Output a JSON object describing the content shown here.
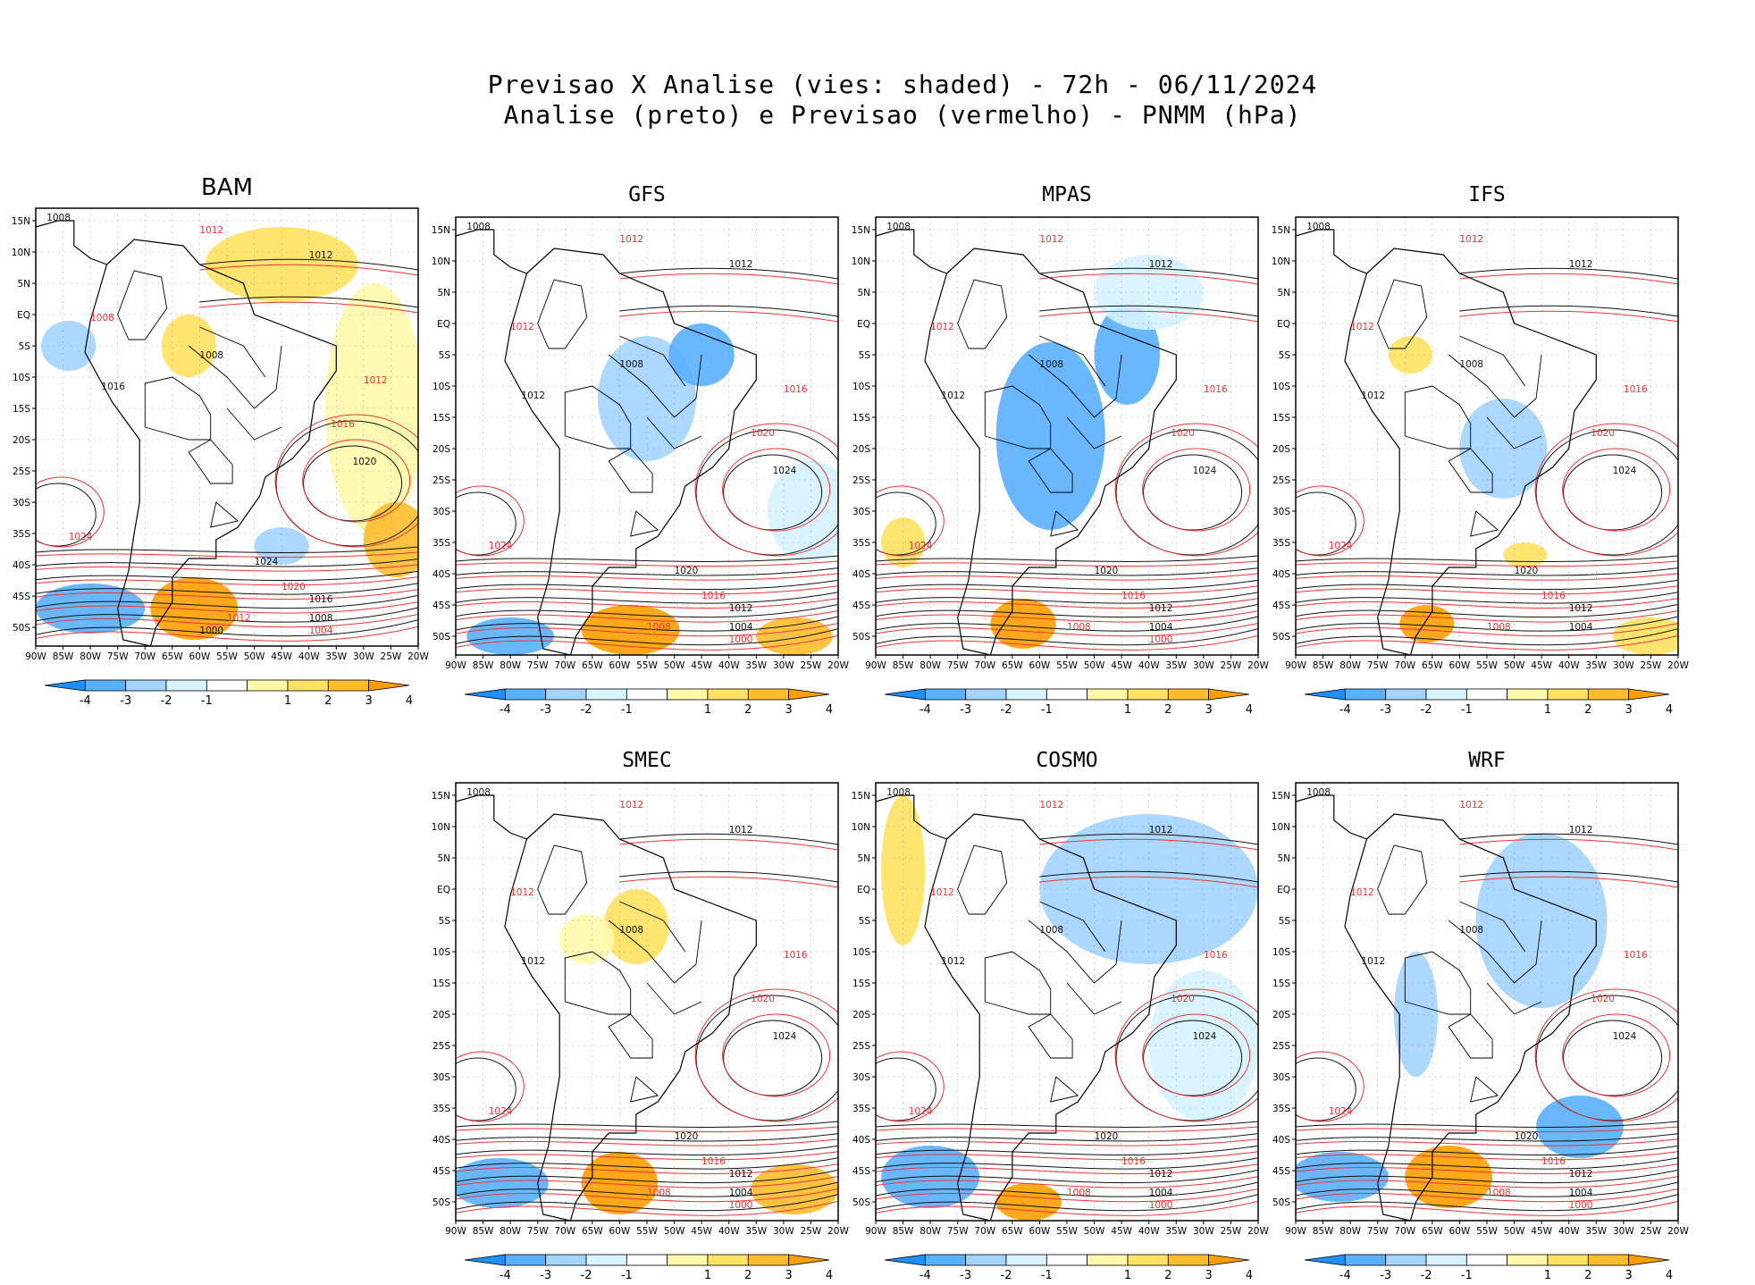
{
  "title_line1": "Previsao X Analise (vies: shaded) - 72h - 06/11/2024",
  "title_line2": "Analise (preto) e Previsao (vermelho) - PNMM (hPa)",
  "chart_data": {
    "type": "heatmap",
    "variable": "PNMM (hPa)",
    "bias_shading": "Previsao X Analise (vies: shaded)",
    "lead_time": "72h",
    "date": "06/11/2024",
    "analysis_color_label": "preto",
    "forecast_color_label": "vermelho",
    "x_ticks": [
      "90W",
      "85W",
      "80W",
      "75W",
      "70W",
      "65W",
      "60W",
      "55W",
      "50W",
      "45W",
      "40W",
      "35W",
      "30W",
      "25W",
      "20W"
    ],
    "y_ticks": [
      "15N",
      "10N",
      "5N",
      "EQ",
      "5S",
      "10S",
      "15S",
      "20S",
      "25S",
      "30S",
      "35S",
      "40S",
      "45S",
      "50S"
    ],
    "x_range": [
      -90,
      -20
    ],
    "y_range": [
      -53,
      17
    ],
    "colorbar": {
      "labels": [
        "-4",
        "-3",
        "-2",
        "-1",
        "1",
        "2",
        "3",
        "4"
      ],
      "colors": [
        "#1e90ff",
        "#59b0ff",
        "#a3d3ff",
        "#d6f3ff",
        "#ffffff",
        "#fff8ab",
        "#ffe261",
        "#ffbd2e",
        "#ff9e00"
      ]
    },
    "panels": [
      {
        "model": "BAM",
        "isobar_labels": [
          "1008",
          "1012",
          "1012",
          "1008",
          "1008",
          "1012",
          "1016",
          "1016",
          "1020",
          "1024",
          "1024",
          "1020",
          "1016",
          "1012",
          "1008",
          "1004",
          "1000"
        ],
        "bias_regions": [
          {
            "lon": -45,
            "lat": 8,
            "rlon": 14,
            "rlat": 6,
            "value": 2
          },
          {
            "lon": -28,
            "lat": -15,
            "rlon": 9,
            "rlat": 20,
            "value": 1
          },
          {
            "lon": -24,
            "lat": -36,
            "rlon": 6,
            "rlat": 6,
            "value": 3
          },
          {
            "lon": -61,
            "lat": -47,
            "rlon": 8,
            "rlat": 5,
            "value": 4
          },
          {
            "lon": -62,
            "lat": -5,
            "rlon": 5,
            "rlat": 5,
            "value": 2
          },
          {
            "lon": -80,
            "lat": -47,
            "rlon": 10,
            "rlat": 4,
            "value": -3
          },
          {
            "lon": -45,
            "lat": -37,
            "rlon": 5,
            "rlat": 3,
            "value": -2
          },
          {
            "lon": -84,
            "lat": -5,
            "rlon": 5,
            "rlat": 4,
            "value": -2
          }
        ]
      },
      {
        "model": "GFS",
        "isobar_labels": [
          "1008",
          "1012",
          "1012",
          "1012",
          "1008",
          "1016",
          "1012",
          "1020",
          "1024",
          "1024",
          "1020",
          "1016",
          "1012",
          "1008",
          "1004",
          "1000"
        ],
        "bias_regions": [
          {
            "lon": -55,
            "lat": -12,
            "rlon": 9,
            "rlat": 10,
            "value": -2
          },
          {
            "lon": -45,
            "lat": -5,
            "rlon": 6,
            "rlat": 5,
            "value": -3
          },
          {
            "lon": -58,
            "lat": -49,
            "rlon": 9,
            "rlat": 4,
            "value": 4
          },
          {
            "lon": -28,
            "lat": -50,
            "rlon": 7,
            "rlat": 3,
            "value": 3
          },
          {
            "lon": -25,
            "lat": -30,
            "rlon": 8,
            "rlat": 8,
            "value": -1
          },
          {
            "lon": -80,
            "lat": -50,
            "rlon": 8,
            "rlat": 3,
            "value": -3
          }
        ]
      },
      {
        "model": "MPAS",
        "isobar_labels": [
          "1008",
          "1012",
          "1012",
          "1012",
          "1008",
          "1016",
          "1012",
          "1020",
          "1024",
          "1024",
          "1020",
          "1016",
          "1012",
          "1008",
          "1004",
          "1000"
        ],
        "bias_regions": [
          {
            "lon": -58,
            "lat": -18,
            "rlon": 10,
            "rlat": 15,
            "value": -3
          },
          {
            "lon": -44,
            "lat": -5,
            "rlon": 6,
            "rlat": 8,
            "value": -3
          },
          {
            "lon": -63,
            "lat": -48,
            "rlon": 6,
            "rlat": 4,
            "value": 4
          },
          {
            "lon": -85,
            "lat": -35,
            "rlon": 4,
            "rlat": 4,
            "value": 2
          },
          {
            "lon": -40,
            "lat": 5,
            "rlon": 10,
            "rlat": 6,
            "value": -1
          }
        ]
      },
      {
        "model": "IFS",
        "isobar_labels": [
          "1008",
          "1012",
          "1012",
          "1012",
          "1008",
          "1016",
          "1012",
          "1020",
          "1024",
          "1024",
          "1020",
          "1016",
          "1012",
          "1008",
          "1004"
        ],
        "bias_regions": [
          {
            "lon": -52,
            "lat": -20,
            "rlon": 8,
            "rlat": 8,
            "value": -2
          },
          {
            "lon": -69,
            "lat": -5,
            "rlon": 4,
            "rlat": 3,
            "value": 2
          },
          {
            "lon": -48,
            "lat": -37,
            "rlon": 4,
            "rlat": 2,
            "value": 2
          },
          {
            "lon": -66,
            "lat": -48,
            "rlon": 5,
            "rlat": 3,
            "value": 4
          },
          {
            "lon": -25,
            "lat": -50,
            "rlon": 7,
            "rlat": 3,
            "value": 2
          }
        ]
      },
      {
        "model": "SMEC",
        "isobar_labels": [
          "1008",
          "1012",
          "1012",
          "1012",
          "1008",
          "1016",
          "1012",
          "1020",
          "1024",
          "1024",
          "1020",
          "1016",
          "1012",
          "1008",
          "1004",
          "1000"
        ],
        "bias_regions": [
          {
            "lon": -57,
            "lat": -6,
            "rlon": 6,
            "rlat": 6,
            "value": 2
          },
          {
            "lon": -66,
            "lat": -8,
            "rlon": 5,
            "rlat": 4,
            "value": 1
          },
          {
            "lon": -60,
            "lat": -47,
            "rlon": 7,
            "rlat": 5,
            "value": 4
          },
          {
            "lon": -28,
            "lat": -48,
            "rlon": 8,
            "rlat": 4,
            "value": 3
          },
          {
            "lon": -82,
            "lat": -47,
            "rlon": 9,
            "rlat": 4,
            "value": -3
          }
        ]
      },
      {
        "model": "COSMO",
        "isobar_labels": [
          "1008",
          "1012",
          "1012",
          "1012",
          "1008",
          "1016",
          "1012",
          "1020",
          "1024",
          "1024",
          "1020",
          "1016",
          "1012",
          "1008",
          "1004",
          "1000"
        ],
        "bias_regions": [
          {
            "lon": -40,
            "lat": 0,
            "rlon": 20,
            "rlat": 12,
            "value": -2
          },
          {
            "lon": -85,
            "lat": 3,
            "rlon": 4,
            "rlat": 12,
            "value": 2
          },
          {
            "lon": -30,
            "lat": -25,
            "rlon": 10,
            "rlat": 12,
            "value": -1
          },
          {
            "lon": -62,
            "lat": -50,
            "rlon": 6,
            "rlat": 3,
            "value": 4
          },
          {
            "lon": -80,
            "lat": -46,
            "rlon": 9,
            "rlat": 5,
            "value": -3
          }
        ]
      },
      {
        "model": "WRF",
        "isobar_labels": [
          "1008",
          "1012",
          "1012",
          "1012",
          "1008",
          "1016",
          "1012",
          "1020",
          "1024",
          "1024",
          "1020",
          "1016",
          "1012",
          "1008",
          "1004",
          "1000"
        ],
        "bias_regions": [
          {
            "lon": -45,
            "lat": -5,
            "rlon": 12,
            "rlat": 14,
            "value": -2
          },
          {
            "lon": -38,
            "lat": -38,
            "rlon": 8,
            "rlat": 5,
            "value": -3
          },
          {
            "lon": -62,
            "lat": -46,
            "rlon": 8,
            "rlat": 5,
            "value": 4
          },
          {
            "lon": -82,
            "lat": -46,
            "rlon": 9,
            "rlat": 4,
            "value": -3
          },
          {
            "lon": -68,
            "lat": -20,
            "rlon": 4,
            "rlat": 10,
            "value": -2
          }
        ]
      }
    ]
  }
}
